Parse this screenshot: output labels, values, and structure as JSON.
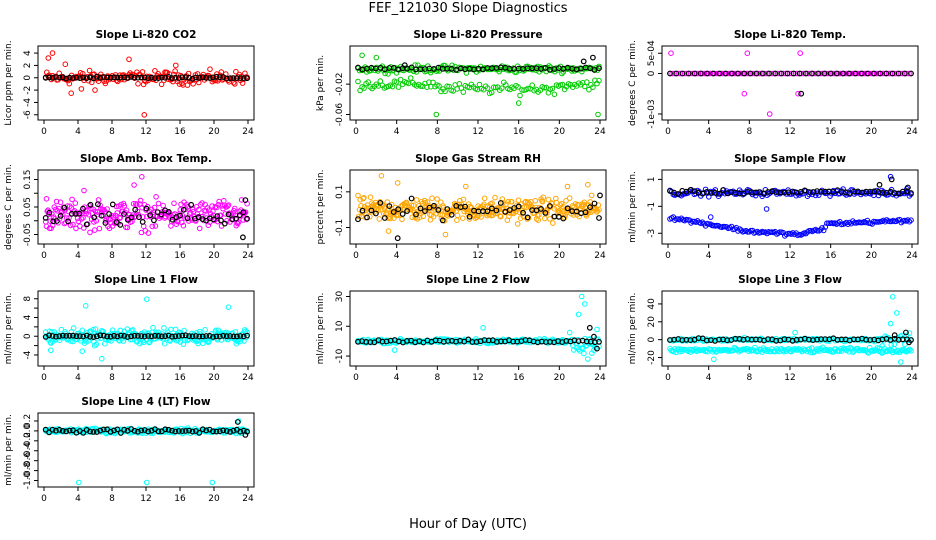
{
  "title": "FEF_121030  Slope Diagnostics",
  "xlabel": "Hour of Day (UTC)",
  "colors": {
    "reference": "#000000",
    "co2": "#ff0000",
    "pressure": "#00cc00",
    "temp_li820": "#ff00ff",
    "box_temp": "#ff00ff",
    "rh": "#ffa500",
    "sample_flow": "#0000ff",
    "line_flow": "#00ffff"
  },
  "chart_data": [
    {
      "type": "scatter",
      "title": "Slope Li-820 CO2",
      "ylabel": "Licor ppm per min.",
      "xlim": [
        0,
        24
      ],
      "ylim": [
        -6.2,
        4.5
      ],
      "xticks": [
        0,
        4,
        8,
        12,
        16,
        20,
        24
      ],
      "yticks": [
        -6,
        -4,
        -2,
        0,
        2,
        4
      ],
      "ytick_labels": [
        "-6",
        "-4",
        "-2",
        "0",
        "2",
        "4"
      ],
      "pattern": "co2",
      "series_color": "co2"
    },
    {
      "type": "scatter",
      "title": "Slope Li-820 Pressure",
      "ylabel": "kPa per min.",
      "xlim": [
        0,
        24
      ],
      "ylim": [
        -0.062,
        0.025
      ],
      "xticks": [
        0,
        4,
        8,
        12,
        16,
        20,
        24
      ],
      "yticks": [
        -0.06,
        -0.02
      ],
      "ytick_labels": [
        "-0.06",
        "-0.02"
      ],
      "pattern": "pressure",
      "series_color": "pressure"
    },
    {
      "type": "scatter",
      "title": "Slope Li-820 Temp.",
      "ylabel": "degrees C per min.",
      "xlim": [
        0,
        24
      ],
      "ylim": [
        -0.00105,
        0.00058
      ],
      "xticks": [
        0,
        4,
        8,
        12,
        16,
        20,
        24
      ],
      "yticks": [
        -0.001,
        0,
        0.0005
      ],
      "ytick_labels": [
        "-1e-03",
        "0",
        "5e-04"
      ],
      "pattern": "temp",
      "series_color": "temp_li820"
    },
    {
      "type": "scatter",
      "title": "Slope Amb. Box Temp.",
      "ylabel": "degrees C per min.",
      "xlim": [
        0,
        24
      ],
      "ylim": [
        -0.07,
        0.17
      ],
      "xticks": [
        0,
        4,
        8,
        12,
        16,
        20,
        24
      ],
      "yticks": [
        -0.05,
        0,
        0.05,
        0.1,
        0.15
      ],
      "ytick_labels": [
        "-0.05",
        "0.05",
        "0.15"
      ],
      "ytick_label_values": [
        -0.05,
        0.05,
        0.15
      ],
      "pattern": "boxtemp",
      "series_color": "box_temp"
    },
    {
      "type": "scatter",
      "title": "Slope Gas Stream RH",
      "ylabel": "percent per min.",
      "xlim": [
        0,
        24
      ],
      "ylim": [
        -0.17,
        0.2
      ],
      "xticks": [
        0,
        4,
        8,
        12,
        16,
        20,
        24
      ],
      "yticks": [
        -0.1,
        0.1
      ],
      "ytick_labels": [
        "-0.1",
        "0.1"
      ],
      "pattern": "rh",
      "series_color": "rh"
    },
    {
      "type": "scatter",
      "title": "Slope Sample Flow",
      "ylabel": "ml/min per min.",
      "xlim": [
        0,
        24
      ],
      "ylim": [
        -3.5,
        1.4
      ],
      "xticks": [
        0,
        4,
        8,
        12,
        16,
        20,
        24
      ],
      "yticks": [
        -3,
        -1,
        1
      ],
      "ytick_labels": [
        "-3",
        "-1",
        "1"
      ],
      "pattern": "sampleflow",
      "series_color": "sample_flow"
    },
    {
      "type": "scatter",
      "title": "Slope Line 1 Flow",
      "ylabel": "ml/min per min.",
      "xlim": [
        0,
        24
      ],
      "ylim": [
        -5.5,
        8.8
      ],
      "xticks": [
        0,
        4,
        8,
        12,
        16,
        20,
        24
      ],
      "yticks": [
        -4,
        -2,
        0,
        2,
        4,
        6,
        8
      ],
      "ytick_labels": [
        "-4",
        "0",
        "4",
        "8"
      ],
      "ytick_label_values": [
        -4,
        0,
        4,
        8
      ],
      "pattern": "line1",
      "series_color": "line_flow"
    },
    {
      "type": "scatter",
      "title": "Slope Line 2 Flow",
      "ylabel": "ml/min per min.",
      "xlim": [
        0,
        24
      ],
      "ylim": [
        -14,
        31
      ],
      "xticks": [
        0,
        4,
        8,
        12,
        16,
        20,
        24
      ],
      "yticks": [
        -10,
        10,
        30
      ],
      "ytick_labels": [
        "-10",
        "10",
        "30"
      ],
      "pattern": "line2",
      "series_color": "line_flow"
    },
    {
      "type": "scatter",
      "title": "Slope Line 3 Flow",
      "ylabel": "ml/min per min.",
      "xlim": [
        0,
        24
      ],
      "ylim": [
        -25,
        50
      ],
      "xticks": [
        0,
        4,
        8,
        12,
        16,
        20,
        24
      ],
      "yticks": [
        -20,
        0,
        20,
        40
      ],
      "ytick_labels": [
        "-20",
        "0",
        "20",
        "40"
      ],
      "pattern": "line3",
      "series_color": "line_flow"
    },
    {
      "type": "scatter",
      "title": "Slope Line 4 (LT) Flow",
      "ylabel": "ml/min per min.",
      "xlim": [
        0,
        24
      ],
      "ylim": [
        -1.05,
        0.28
      ],
      "xticks": [
        0,
        4,
        8,
        12,
        16,
        20,
        24
      ],
      "yticks": [
        -1,
        -0.8,
        -0.6,
        -0.4,
        -0.2,
        0,
        0.2
      ],
      "ytick_labels": [
        "-1.0",
        "-0.8",
        "-0.6",
        "-0.4",
        "-0.2",
        "0.0",
        "0.2"
      ],
      "pattern": "line4",
      "series_color": "line_flow"
    }
  ]
}
